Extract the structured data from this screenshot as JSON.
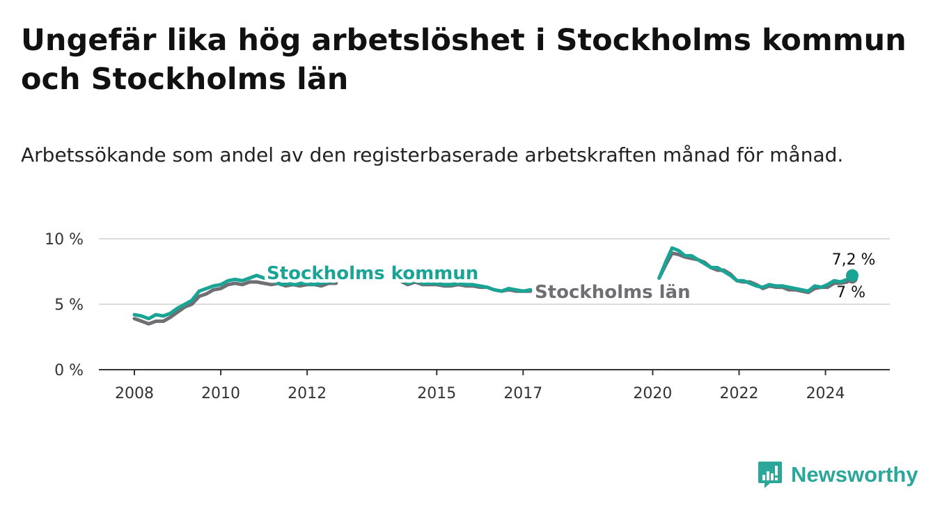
{
  "title": "Ungefär lika hög arbetslöshet i Stockholms kommun och Stockholms län",
  "subtitle": "Arbetssökande som andel av den registerbaserade arbetskraften månad för månad.",
  "brand": {
    "name": "Newsworthy",
    "icon": "newsworthy-logo-icon",
    "color": "#2aa69a"
  },
  "chart_data": {
    "type": "line",
    "ylim": [
      0,
      10
    ],
    "yticks": [
      {
        "value": 0,
        "label": "0 %"
      },
      {
        "value": 5,
        "label": "5 %"
      },
      {
        "value": 10,
        "label": "10 %"
      }
    ],
    "xlim": [
      2008,
      2024.7
    ],
    "xticks": [
      {
        "value": 2008,
        "label": "2008"
      },
      {
        "value": 2010,
        "label": "2010"
      },
      {
        "value": 2012,
        "label": "2012"
      },
      {
        "value": 2015,
        "label": "2015"
      },
      {
        "value": 2017,
        "label": "2017"
      },
      {
        "value": 2020,
        "label": "2020"
      },
      {
        "value": 2022,
        "label": "2022"
      },
      {
        "value": 2024,
        "label": "2024"
      }
    ],
    "grid": true,
    "series": [
      {
        "name": "Stockholms län",
        "color": "#6e6e73",
        "end_label": "7 %",
        "segments": [
          [
            [
              2008.0,
              3.9
            ],
            [
              2008.17,
              3.7
            ],
            [
              2008.33,
              3.5
            ],
            [
              2008.5,
              3.7
            ],
            [
              2008.67,
              3.7
            ],
            [
              2008.83,
              4.0
            ],
            [
              2009.0,
              4.4
            ],
            [
              2009.17,
              4.8
            ],
            [
              2009.33,
              5.0
            ],
            [
              2009.5,
              5.6
            ],
            [
              2009.67,
              5.8
            ],
            [
              2009.83,
              6.1
            ],
            [
              2010.0,
              6.2
            ],
            [
              2010.17,
              6.5
            ],
            [
              2010.33,
              6.6
            ],
            [
              2010.5,
              6.5
            ],
            [
              2010.67,
              6.7
            ],
            [
              2010.83,
              6.7
            ],
            [
              2011.0,
              6.6
            ],
            [
              2011.17,
              6.5
            ],
            [
              2011.33,
              6.6
            ],
            [
              2011.5,
              6.4
            ],
            [
              2011.67,
              6.5
            ],
            [
              2011.83,
              6.4
            ],
            [
              2012.0,
              6.5
            ],
            [
              2012.17,
              6.5
            ],
            [
              2012.33,
              6.4
            ],
            [
              2012.5,
              6.6
            ],
            [
              2012.67,
              6.6
            ]
          ],
          [
            [
              2014.2,
              6.7
            ],
            [
              2014.33,
              6.5
            ],
            [
              2014.5,
              6.7
            ],
            [
              2014.67,
              6.5
            ],
            [
              2014.83,
              6.5
            ],
            [
              2015.0,
              6.5
            ],
            [
              2015.17,
              6.4
            ],
            [
              2015.33,
              6.4
            ],
            [
              2015.5,
              6.5
            ],
            [
              2015.67,
              6.4
            ],
            [
              2015.83,
              6.4
            ],
            [
              2016.0,
              6.3
            ],
            [
              2016.17,
              6.3
            ],
            [
              2016.33,
              6.1
            ],
            [
              2016.5,
              6.0
            ],
            [
              2016.67,
              6.1
            ],
            [
              2016.83,
              6.0
            ],
            [
              2017.0,
              6.0
            ],
            [
              2017.17,
              6.0
            ]
          ],
          [
            [
              2020.15,
              7.0
            ],
            [
              2020.3,
              8.0
            ],
            [
              2020.45,
              8.9
            ],
            [
              2020.6,
              8.8
            ],
            [
              2020.75,
              8.6
            ],
            [
              2020.9,
              8.5
            ],
            [
              2021.05,
              8.4
            ],
            [
              2021.2,
              8.2
            ],
            [
              2021.35,
              7.8
            ],
            [
              2021.5,
              7.6
            ],
            [
              2021.65,
              7.6
            ],
            [
              2021.8,
              7.3
            ],
            [
              2021.95,
              6.8
            ],
            [
              2022.1,
              6.7
            ],
            [
              2022.25,
              6.7
            ],
            [
              2022.4,
              6.5
            ],
            [
              2022.55,
              6.2
            ],
            [
              2022.7,
              6.4
            ],
            [
              2022.85,
              6.3
            ],
            [
              2023.0,
              6.3
            ],
            [
              2023.15,
              6.1
            ],
            [
              2023.3,
              6.1
            ],
            [
              2023.45,
              6.0
            ],
            [
              2023.6,
              5.9
            ],
            [
              2023.75,
              6.2
            ],
            [
              2023.9,
              6.3
            ],
            [
              2024.05,
              6.3
            ],
            [
              2024.2,
              6.6
            ],
            [
              2024.35,
              6.6
            ],
            [
              2024.5,
              6.7
            ],
            [
              2024.62,
              7.0
            ]
          ]
        ]
      },
      {
        "name": "Stockholms kommun",
        "color": "#1aa496",
        "end_label": "7,2 %",
        "segments": [
          [
            [
              2008.0,
              4.2
            ],
            [
              2008.17,
              4.1
            ],
            [
              2008.33,
              3.9
            ],
            [
              2008.5,
              4.2
            ],
            [
              2008.67,
              4.1
            ],
            [
              2008.83,
              4.3
            ],
            [
              2009.0,
              4.7
            ],
            [
              2009.17,
              5.0
            ],
            [
              2009.33,
              5.3
            ],
            [
              2009.5,
              6.0
            ],
            [
              2009.67,
              6.2
            ],
            [
              2009.83,
              6.4
            ],
            [
              2010.0,
              6.5
            ],
            [
              2010.17,
              6.8
            ],
            [
              2010.33,
              6.9
            ],
            [
              2010.5,
              6.8
            ],
            [
              2010.67,
              7.0
            ],
            [
              2010.83,
              7.2
            ],
            [
              2011.0,
              7.0
            ],
            [
              2011.17,
              6.9
            ]
          ],
          [
            [
              2011.25,
              6.7
            ],
            [
              2011.4,
              6.5
            ],
            [
              2011.55,
              6.6
            ],
            [
              2011.7,
              6.5
            ],
            [
              2011.85,
              6.6
            ],
            [
              2012.0,
              6.6
            ],
            [
              2012.15,
              6.5
            ],
            [
              2012.3,
              6.6
            ],
            [
              2012.45,
              6.7
            ],
            [
              2012.6,
              6.7
            ]
          ],
          [
            [
              2014.2,
              6.8
            ],
            [
              2014.33,
              6.6
            ],
            [
              2014.5,
              6.8
            ],
            [
              2014.67,
              6.6
            ],
            [
              2014.83,
              6.6
            ],
            [
              2015.0,
              6.6
            ],
            [
              2015.17,
              6.5
            ],
            [
              2015.33,
              6.5
            ],
            [
              2015.5,
              6.6
            ],
            [
              2015.67,
              6.5
            ],
            [
              2015.83,
              6.5
            ],
            [
              2016.0,
              6.4
            ],
            [
              2016.17,
              6.3
            ],
            [
              2016.33,
              6.1
            ],
            [
              2016.5,
              6.0
            ],
            [
              2016.67,
              6.2
            ],
            [
              2016.83,
              6.1
            ],
            [
              2017.0,
              6.0
            ],
            [
              2017.17,
              6.1
            ]
          ],
          [
            [
              2020.15,
              7.0
            ],
            [
              2020.3,
              8.2
            ],
            [
              2020.45,
              9.3
            ],
            [
              2020.6,
              9.1
            ],
            [
              2020.75,
              8.7
            ],
            [
              2020.9,
              8.7
            ],
            [
              2021.05,
              8.4
            ],
            [
              2021.2,
              8.1
            ],
            [
              2021.35,
              7.8
            ],
            [
              2021.5,
              7.8
            ],
            [
              2021.65,
              7.5
            ],
            [
              2021.8,
              7.2
            ],
            [
              2021.95,
              6.8
            ],
            [
              2022.1,
              6.8
            ],
            [
              2022.25,
              6.6
            ],
            [
              2022.4,
              6.4
            ],
            [
              2022.55,
              6.3
            ],
            [
              2022.7,
              6.5
            ],
            [
              2022.85,
              6.4
            ],
            [
              2023.0,
              6.4
            ],
            [
              2023.15,
              6.3
            ],
            [
              2023.3,
              6.2
            ],
            [
              2023.45,
              6.1
            ],
            [
              2023.6,
              6.0
            ],
            [
              2023.75,
              6.4
            ],
            [
              2023.9,
              6.3
            ],
            [
              2024.05,
              6.5
            ],
            [
              2024.2,
              6.8
            ],
            [
              2024.35,
              6.7
            ],
            [
              2024.5,
              6.9
            ],
            [
              2024.62,
              7.2
            ]
          ]
        ]
      }
    ]
  }
}
